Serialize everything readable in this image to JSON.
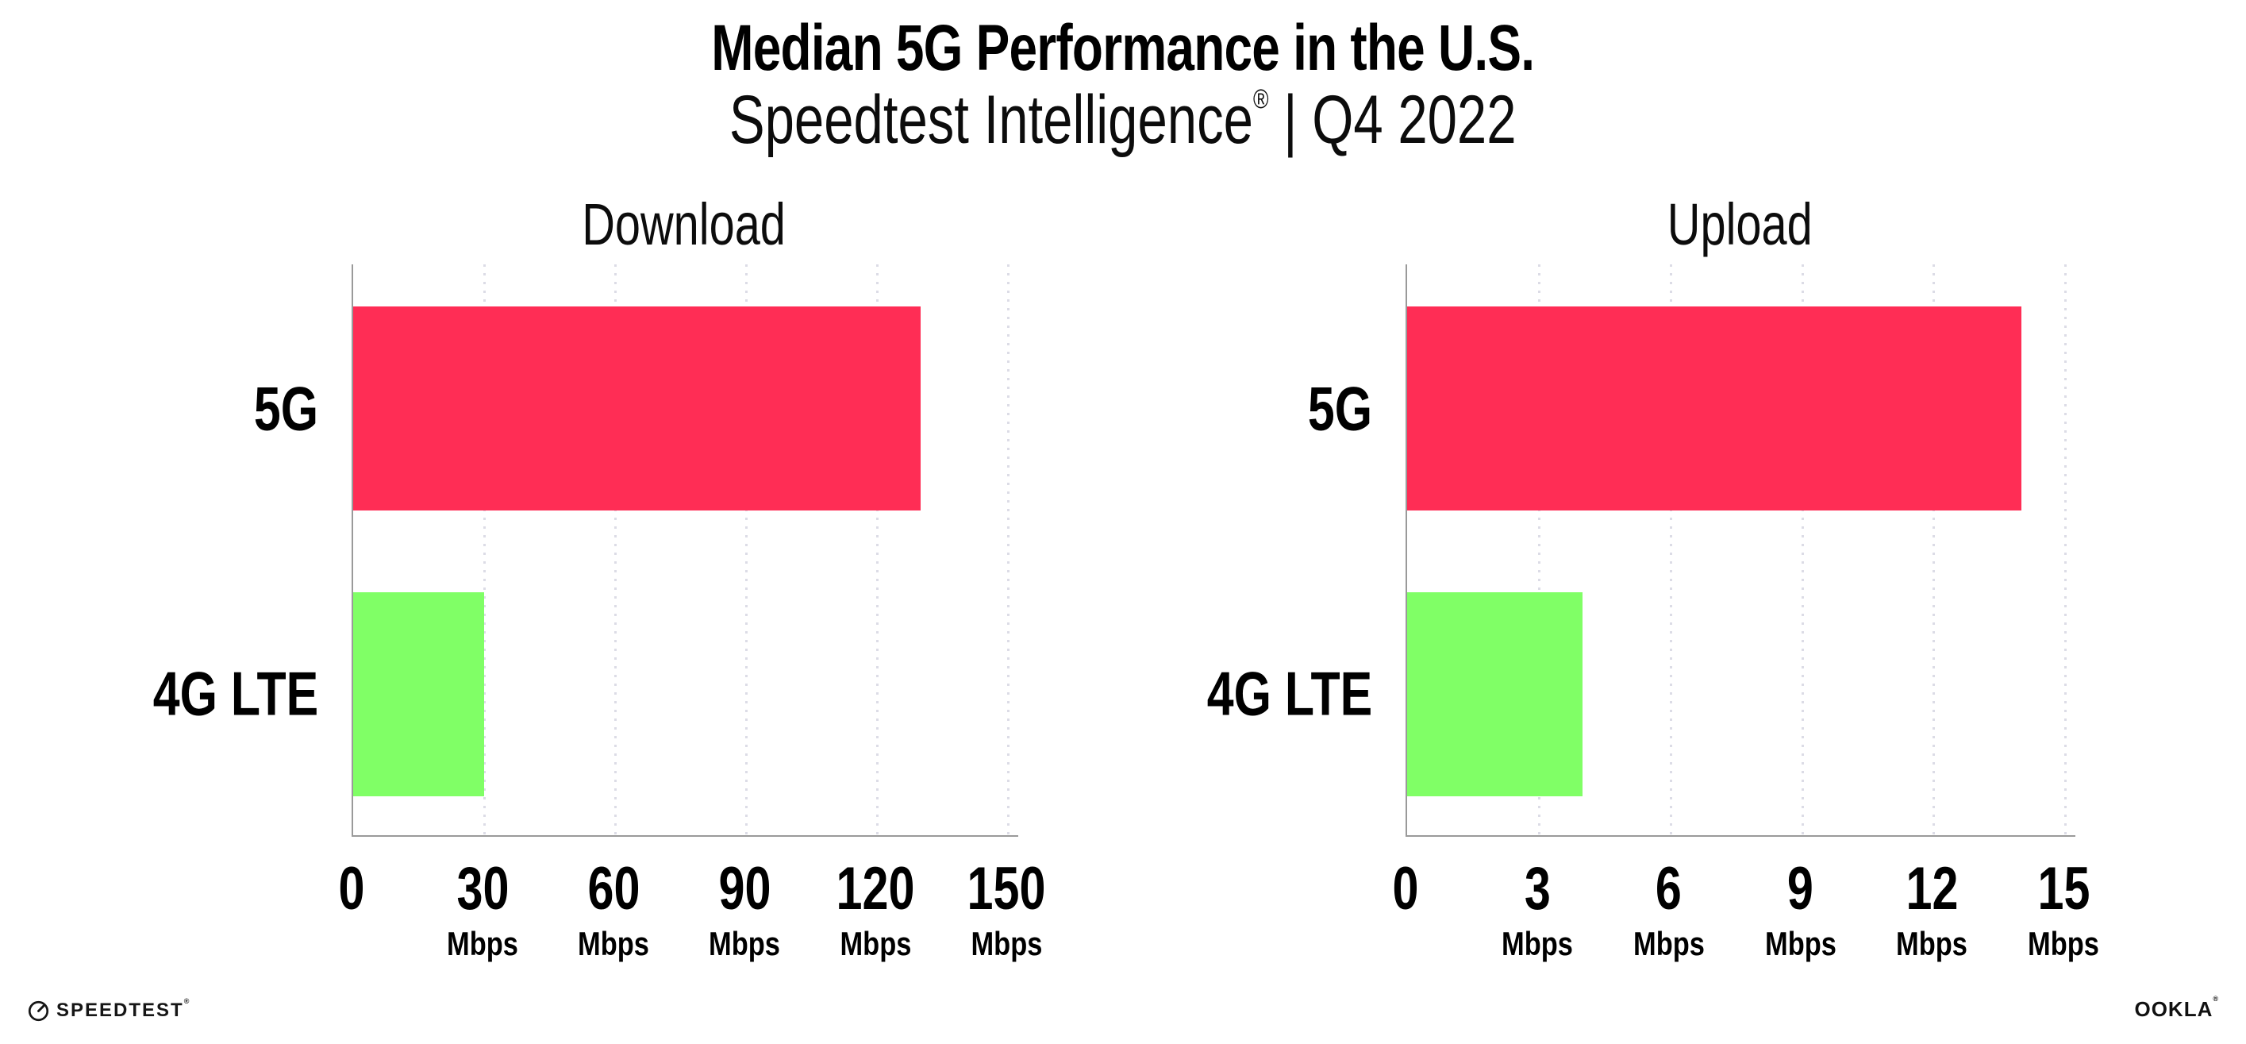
{
  "header": {
    "title": "Median 5G Performance in the U.S.",
    "subtitle_brand": "Speedtest Intelligence",
    "subtitle_reg": "®",
    "subtitle_rest": " | Q4 2022"
  },
  "chart_data": [
    {
      "type": "bar",
      "orientation": "horizontal",
      "title": "Download",
      "categories": [
        "5G",
        "4G LTE"
      ],
      "values": [
        130,
        30
      ],
      "unit": "Mbps",
      "xlim": [
        0,
        150
      ],
      "xticks": [
        0,
        30,
        60,
        90,
        120,
        150
      ],
      "bar_colors": [
        "#FF2D55",
        "#80FF66"
      ],
      "grid": "dotted-vertical",
      "legend": "none"
    },
    {
      "type": "bar",
      "orientation": "horizontal",
      "title": "Upload",
      "categories": [
        "5G",
        "4G LTE"
      ],
      "values": [
        14,
        4
      ],
      "unit": "Mbps",
      "xlim": [
        0,
        15
      ],
      "xticks": [
        0,
        3,
        6,
        9,
        12,
        15
      ],
      "bar_colors": [
        "#FF2D55",
        "#80FF66"
      ],
      "grid": "dotted-vertical",
      "legend": "none"
    }
  ],
  "footer": {
    "speedtest_label": "SPEEDTEST",
    "speedtest_reg": "®",
    "ookla_label": "OOKLA",
    "ookla_reg": "®"
  },
  "colors": {
    "bar_5g": "#FF2D55",
    "bar_4g_lte": "#80FF66",
    "axis": "#9a9a9a",
    "gridline": "#dcdce6",
    "text": "#000000"
  }
}
